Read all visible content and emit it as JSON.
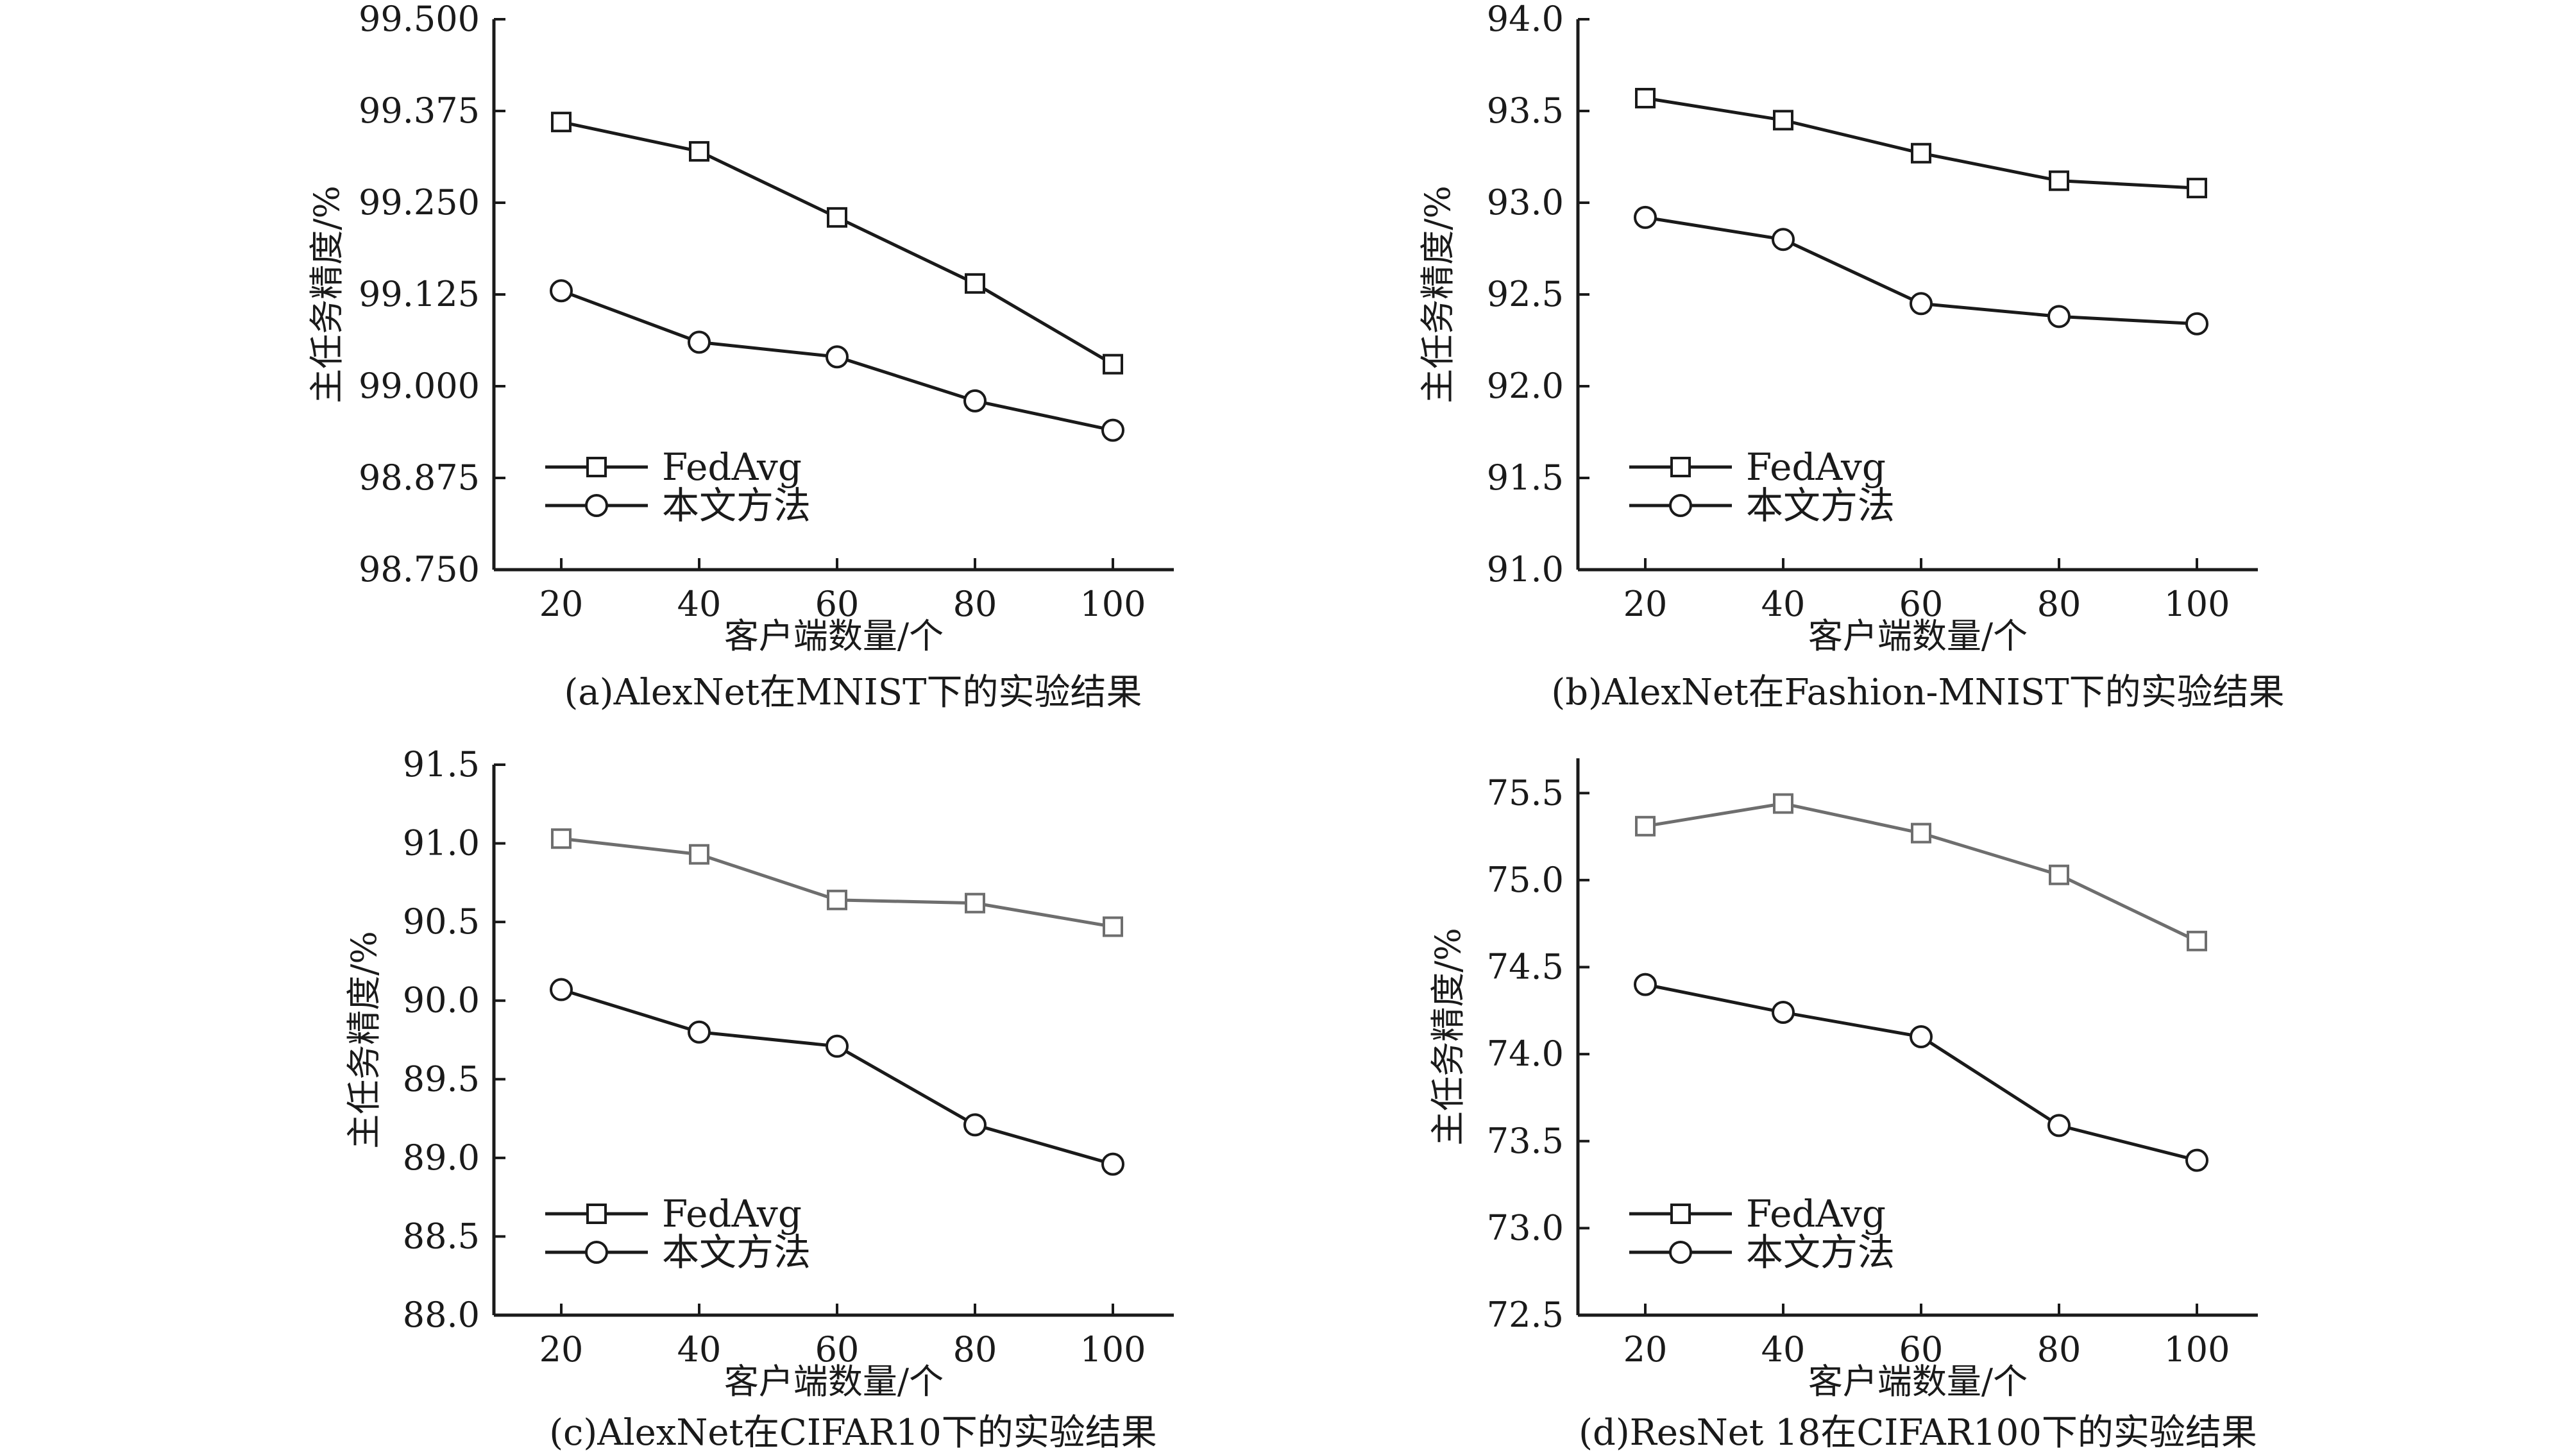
{
  "chart_data": [
    {
      "type": "line",
      "caption": "(a)AlexNet在MNIST下的实验结果",
      "xlabel": "客户端数量/个",
      "ylabel": "主任务精度/%",
      "x": [
        20,
        40,
        60,
        80,
        100
      ],
      "ylim": [
        98.75,
        99.5
      ],
      "yticks": [
        "99.500",
        "99.375",
        "99.250",
        "99.125",
        "99.000",
        "98.875",
        "98.750"
      ],
      "yticks_values": [
        99.5,
        99.375,
        99.25,
        99.125,
        99.0,
        98.875,
        98.75
      ],
      "xticks": [
        "20",
        "40",
        "60",
        "80",
        "100"
      ],
      "legend_position": "lower-left",
      "series": [
        {
          "name": "FedAvg",
          "marker": "square",
          "color": "#1a1a1a",
          "values": [
            99.36,
            99.32,
            99.23,
            99.14,
            99.03
          ]
        },
        {
          "name": "本文方法",
          "marker": "circle",
          "color": "#1a1a1a",
          "values": [
            99.13,
            99.06,
            99.04,
            98.98,
            98.94
          ]
        }
      ]
    },
    {
      "type": "line",
      "caption": "(b)AlexNet在Fashion-MNIST下的实验结果",
      "xlabel": "客户端数量/个",
      "ylabel": "主任务精度/%",
      "x": [
        20,
        40,
        60,
        80,
        100
      ],
      "ylim": [
        91.0,
        94.0
      ],
      "yticks": [
        "94.0",
        "93.5",
        "93.0",
        "92.5",
        "92.0",
        "91.5",
        "91.0"
      ],
      "yticks_values": [
        94.0,
        93.5,
        93.0,
        92.5,
        92.0,
        91.5,
        91.0
      ],
      "xticks": [
        "20",
        "40",
        "60",
        "80",
        "100"
      ],
      "legend_position": "lower-left",
      "series": [
        {
          "name": "FedAvg",
          "marker": "square",
          "color": "#1a1a1a",
          "values": [
            93.57,
            93.45,
            93.27,
            93.12,
            93.08
          ]
        },
        {
          "name": "本文方法",
          "marker": "circle",
          "color": "#1a1a1a",
          "values": [
            92.92,
            92.8,
            92.45,
            92.38,
            92.34
          ]
        }
      ]
    },
    {
      "type": "line",
      "caption": "(c)AlexNet在CIFAR10下的实验结果",
      "xlabel": "客户端数量/个",
      "ylabel": "主任务精度/%",
      "x": [
        20,
        40,
        60,
        80,
        100
      ],
      "ylim": [
        88.0,
        91.5
      ],
      "yticks": [
        "91.5",
        "91.0",
        "90.5",
        "90.0",
        "89.5",
        "89.0",
        "88.5",
        "88.0"
      ],
      "yticks_values": [
        91.5,
        91.0,
        90.5,
        90.0,
        89.5,
        89.0,
        88.5,
        88.0
      ],
      "xticks": [
        "20",
        "40",
        "60",
        "80",
        "100"
      ],
      "legend_position": "lower-left",
      "series": [
        {
          "name": "FedAvg",
          "marker": "square",
          "color": "#6e6e6e",
          "values": [
            91.03,
            90.93,
            90.64,
            90.62,
            90.47
          ]
        },
        {
          "name": "本文方法",
          "marker": "circle",
          "color": "#1a1a1a",
          "values": [
            90.07,
            89.8,
            89.71,
            89.21,
            88.96
          ]
        }
      ]
    },
    {
      "type": "line",
      "caption": "(d)ResNet 18在CIFAR100下的实验结果",
      "xlabel": "客户端数量/个",
      "ylabel": "主任务精度/%",
      "x": [
        20,
        40,
        60,
        80,
        100
      ],
      "ylim": [
        72.5,
        75.7
      ],
      "yticks": [
        "75.5",
        "75.0",
        "74.5",
        "74.0",
        "73.5",
        "73.0",
        "72.5"
      ],
      "yticks_values": [
        75.5,
        75.0,
        74.5,
        74.0,
        73.5,
        73.0,
        72.5
      ],
      "xticks": [
        "20",
        "40",
        "60",
        "80",
        "100"
      ],
      "legend_position": "lower-left",
      "series": [
        {
          "name": "FedAvg",
          "marker": "square",
          "color": "#6e6e6e",
          "values": [
            75.31,
            75.44,
            75.27,
            75.03,
            74.65
          ]
        },
        {
          "name": "本文方法",
          "marker": "circle",
          "color": "#1a1a1a",
          "values": [
            74.4,
            74.24,
            74.1,
            73.59,
            73.39
          ]
        }
      ]
    }
  ]
}
